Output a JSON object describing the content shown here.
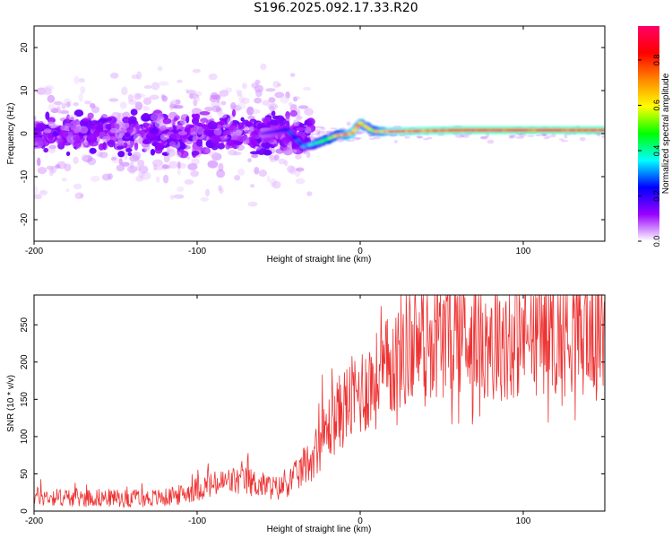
{
  "title": "S196.2025.092.17.33.R20",
  "chart_data": [
    {
      "type": "heatmap",
      "name": "spectrogram",
      "xlabel": "Height of straight line (km)",
      "ylabel": "Frequency (Hz)",
      "xlim": [
        -200,
        150
      ],
      "ylim": [
        -25,
        25
      ],
      "xticks": [
        -200,
        -100,
        0,
        100
      ],
      "xtick_labels": [
        "-200",
        "-100",
        "0",
        "100"
      ],
      "yticks": [
        -20,
        -10,
        0,
        10,
        20
      ],
      "ytick_labels": [
        "-20",
        "-10",
        "0",
        "10",
        "20"
      ],
      "colorbar": {
        "label": "Normalized spectral amplitude",
        "range": [
          0,
          0.95
        ],
        "ticks": [
          0,
          0.2,
          0.4,
          0.6,
          0.8
        ],
        "tick_labels": [
          "0.0",
          "0.2",
          "0.4",
          "0.6",
          "0.8"
        ],
        "colormap": [
          "#ffffff",
          "#9900ff",
          "#0000ff",
          "#00ffff",
          "#00ff00",
          "#ffff00",
          "#ff8800",
          "#ff0000",
          "#ff0066"
        ]
      },
      "ridge": [
        {
          "x": -200,
          "y": 0,
          "amp": 0.12
        },
        {
          "x": -150,
          "y": 0,
          "amp": 0.12
        },
        {
          "x": -100,
          "y": 0,
          "amp": 0.12
        },
        {
          "x": -60,
          "y": 0,
          "amp": 0.15
        },
        {
          "x": -45,
          "y": 1,
          "amp": 0.25
        },
        {
          "x": -35,
          "y": -3,
          "amp": 0.3
        },
        {
          "x": -25,
          "y": -2,
          "amp": 0.45
        },
        {
          "x": -15,
          "y": -0.5,
          "amp": 0.6
        },
        {
          "x": -5,
          "y": 0,
          "amp": 0.75
        },
        {
          "x": 0,
          "y": 2.5,
          "amp": 0.7
        },
        {
          "x": 8,
          "y": 0.5,
          "amp": 0.6
        },
        {
          "x": 20,
          "y": 0.5,
          "amp": 0.8
        },
        {
          "x": 60,
          "y": 0.8,
          "amp": 0.85
        },
        {
          "x": 100,
          "y": 0.8,
          "amp": 0.85
        },
        {
          "x": 150,
          "y": 0.8,
          "amp": 0.85
        }
      ]
    },
    {
      "type": "line",
      "name": "snr",
      "xlabel": "Height of straight line (km)",
      "ylabel": "SNR (10 * v/v)",
      "xlim": [
        -200,
        150
      ],
      "ylim": [
        0,
        290
      ],
      "xticks": [
        -200,
        -100,
        0,
        100
      ],
      "xtick_labels": [
        "-200",
        "-100",
        "0",
        "100"
      ],
      "yticks": [
        0,
        50,
        100,
        150,
        200,
        250
      ],
      "ytick_labels": [
        "0",
        "50",
        "100",
        "150",
        "200",
        "250"
      ],
      "color": "#ee3333",
      "series": [
        {
          "x": [
            -200,
            -180,
            -160,
            -140,
            -120,
            -110,
            -100,
            -90,
            -80,
            -70,
            -60,
            -50,
            -40,
            -30,
            -25,
            -20,
            -15,
            -10,
            -5,
            0,
            5,
            10,
            15,
            20,
            25,
            30,
            40,
            50,
            60,
            70,
            80,
            90,
            100,
            110,
            120,
            130,
            140,
            150
          ],
          "values": [
            20,
            18,
            18,
            17,
            18,
            22,
            30,
            35,
            40,
            40,
            35,
            30,
            45,
            70,
            90,
            110,
            125,
            140,
            150,
            160,
            170,
            175,
            185,
            200,
            215,
            225,
            235,
            240,
            240,
            240,
            238,
            235,
            240,
            245,
            245,
            245,
            245,
            250
          ]
        }
      ]
    }
  ]
}
